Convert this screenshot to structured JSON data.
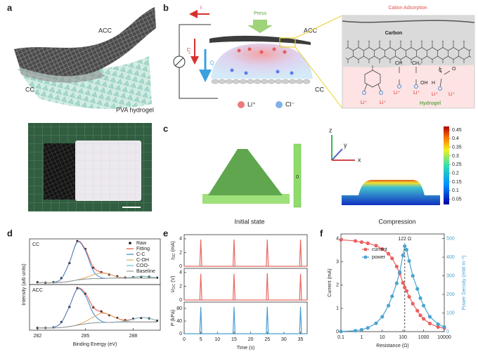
{
  "figure": {
    "panel_labels": [
      "a",
      "b",
      "c",
      "d",
      "e",
      "f"
    ],
    "a": {
      "labels": [
        "ACC",
        "CC",
        "PVA hydrogel"
      ]
    },
    "b": {
      "current": "I",
      "press": "Press",
      "acc": "ACC",
      "li": "Li⁺",
      "cl": "Cl⁻",
      "cc": "CC",
      "legend": [
        "Li⁺",
        "Cl⁻"
      ]
    },
    "adsorption": {
      "title": "Cation Adsorption",
      "carbon": "Carbon",
      "hydrogel": "Hydrogel",
      "groups": [
        "Li⁺",
        "Li⁺",
        "CH",
        "Li⁺",
        "CH₂",
        "OH",
        "Li⁺",
        "H",
        "C",
        "O",
        "Li⁺",
        "Li⁺"
      ]
    },
    "c": {
      "captions": [
        "Initial state",
        "Compression"
      ],
      "axes": [
        "z",
        "y",
        "x"
      ],
      "scale_zero": "0",
      "colorbar": {
        "lim": [
          0.02,
          0.47
        ],
        "ticks": [
          0.45,
          0.4,
          0.35,
          0.3,
          0.25,
          0.2,
          0.15,
          0.1,
          0.05
        ]
      }
    }
  },
  "chart_data": [
    {
      "type": "line",
      "title": "CC",
      "smooth": true,
      "legend": "upper right",
      "x": [
        282,
        282.5,
        283,
        283.5,
        284,
        284.5,
        285,
        285.5,
        286,
        286.5,
        287,
        287.5,
        288,
        288.5,
        289,
        289.5
      ],
      "xlim": [
        281.5,
        289.7
      ],
      "ylim": [
        0,
        1.0
      ],
      "series": [
        {
          "name": "Raw",
          "color": "#111111",
          "marker": "dot",
          "values": [
            0.05,
            0.04,
            0.05,
            0.14,
            0.47,
            0.95,
            0.78,
            0.37,
            0.27,
            0.22,
            0.18,
            0.15,
            0.16,
            0.17,
            0.17,
            0.15
          ]
        },
        {
          "name": "Fitting",
          "color": "#e8553f",
          "values": [
            0.04,
            0.04,
            0.045,
            0.13,
            0.48,
            0.94,
            0.77,
            0.38,
            0.27,
            0.23,
            0.17,
            0.15,
            0.16,
            0.18,
            0.17,
            0.15
          ]
        },
        {
          "name": "C-C",
          "color": "#3f86cc",
          "values": [
            0.04,
            0.04,
            0.045,
            0.13,
            0.48,
            0.93,
            0.74,
            0.3,
            0.15,
            0.14,
            0.14,
            0.14,
            0.14,
            0.14,
            0.14,
            0.14
          ]
        },
        {
          "name": "C-OH",
          "color": "#e3a86a",
          "values": [
            0.04,
            0.04,
            0.04,
            0.05,
            0.07,
            0.105,
            0.15,
            0.215,
            0.25,
            0.225,
            0.17,
            0.145,
            0.14,
            0.14,
            0.14,
            0.14
          ]
        },
        {
          "name": "COO-",
          "color": "#6cc3d6",
          "values": [
            0.04,
            0.04,
            0.04,
            0.05,
            0.07,
            0.1,
            0.12,
            0.13,
            0.13,
            0.14,
            0.14,
            0.145,
            0.16,
            0.18,
            0.17,
            0.15
          ]
        },
        {
          "name": "Baseline",
          "color": "#9a9a9a",
          "values": [
            0.04,
            0.04,
            0.04,
            0.05,
            0.07,
            0.1,
            0.12,
            0.13,
            0.13,
            0.14,
            0.14,
            0.14,
            0.14,
            0.14,
            0.14,
            0.14
          ]
        }
      ]
    },
    {
      "type": "line",
      "title": "ACC",
      "smooth": true,
      "x": [
        282,
        282.5,
        283,
        283.5,
        284,
        284.5,
        285,
        285.5,
        286,
        286.5,
        287,
        287.5,
        288,
        288.5,
        289,
        289.5
      ],
      "xlim": [
        281.5,
        289.7
      ],
      "ylim": [
        0,
        1.0
      ],
      "xticks": [
        282,
        285,
        288
      ],
      "xlabel": "Binding Energy (eV)",
      "ylabel": "Intensity (arb units)",
      "series": [
        {
          "color": "#111111",
          "marker": "dot",
          "values": [
            0.05,
            0.05,
            0.06,
            0.18,
            0.51,
            0.92,
            0.8,
            0.5,
            0.41,
            0.33,
            0.27,
            0.22,
            0.25,
            0.27,
            0.26,
            0.21
          ]
        },
        {
          "color": "#e8553f",
          "values": [
            0.05,
            0.05,
            0.06,
            0.17,
            0.52,
            0.91,
            0.81,
            0.5,
            0.4,
            0.34,
            0.26,
            0.22,
            0.245,
            0.28,
            0.26,
            0.21
          ]
        },
        {
          "color": "#3f86cc",
          "values": [
            0.05,
            0.05,
            0.06,
            0.17,
            0.52,
            0.9,
            0.76,
            0.37,
            0.2,
            0.17,
            0.18,
            0.18,
            0.18,
            0.18,
            0.18,
            0.18
          ]
        },
        {
          "color": "#e3a86a",
          "values": [
            0.05,
            0.05,
            0.05,
            0.06,
            0.08,
            0.12,
            0.19,
            0.29,
            0.37,
            0.34,
            0.26,
            0.2,
            0.185,
            0.18,
            0.18,
            0.18
          ]
        },
        {
          "color": "#6cc3d6",
          "values": [
            0.05,
            0.05,
            0.05,
            0.06,
            0.08,
            0.11,
            0.14,
            0.16,
            0.17,
            0.17,
            0.18,
            0.2,
            0.24,
            0.28,
            0.26,
            0.21
          ]
        },
        {
          "color": "#9a9a9a",
          "values": [
            0.05,
            0.05,
            0.05,
            0.06,
            0.08,
            0.11,
            0.14,
            0.16,
            0.17,
            0.17,
            0.18,
            0.18,
            0.18,
            0.18,
            0.18,
            0.18
          ]
        }
      ]
    },
    {
      "type": "line",
      "color": "#e8685f",
      "ylabel": {
        "symbol": "I",
        "sub": "SC",
        "unit": "(mA)"
      },
      "x": [
        0,
        4.7,
        5,
        5.3,
        14.7,
        15,
        15.3,
        24.7,
        25,
        25.3,
        34.7,
        35,
        35.3,
        37
      ],
      "values": [
        0,
        0,
        3.9,
        0,
        0,
        3.9,
        0,
        0,
        3.9,
        0,
        0,
        3.9,
        0,
        0
      ],
      "xlim": [
        0,
        37
      ],
      "ylim": [
        0,
        4.6
      ],
      "yticks": [
        0,
        2,
        4
      ]
    },
    {
      "type": "line",
      "color": "#e8685f",
      "ylabel": {
        "symbol": "V",
        "sub": "OC",
        "unit": "(V)"
      },
      "x": [
        0,
        4.7,
        5,
        5.3,
        14.7,
        15,
        15.3,
        24.7,
        25,
        25.3,
        34.7,
        35,
        35.3,
        37
      ],
      "values": [
        0,
        0,
        3.8,
        0,
        0,
        3.8,
        0,
        0,
        3.9,
        0,
        0,
        3.8,
        0,
        0
      ],
      "xlim": [
        0,
        37
      ],
      "ylim": [
        0,
        4.6
      ],
      "yticks": [
        0,
        2,
        4
      ]
    },
    {
      "type": "line",
      "color": "#4a9fd0",
      "ylabel": {
        "symbol": "P",
        "unit": "(kPa)"
      },
      "x": [
        0,
        4.7,
        5,
        5.3,
        14.7,
        15,
        15.3,
        24.7,
        25,
        25.3,
        34.7,
        35,
        35.3,
        37
      ],
      "values": [
        0,
        0,
        85,
        0,
        0,
        85,
        0,
        0,
        85,
        0,
        0,
        85,
        0,
        0
      ],
      "xlim": [
        0,
        37
      ],
      "ylim": [
        0,
        100
      ],
      "yticks": [
        0,
        40,
        80
      ],
      "xticks": [
        0,
        5,
        10,
        15,
        20,
        25,
        30,
        35
      ],
      "xlabel": "Time (s)"
    },
    {
      "type": "line",
      "xlog": true,
      "markers": true,
      "legend": "upper left",
      "x": [
        0.1,
        0.5,
        1,
        2,
        5,
        10,
        20,
        30,
        50,
        70,
        100,
        122,
        150,
        200,
        300,
        500,
        700,
        1000,
        2000,
        5000,
        10000
      ],
      "xlim": [
        0.1,
        10000
      ],
      "xticks": [
        0.1,
        1,
        10,
        100,
        1000,
        10000
      ],
      "ylim": [
        0,
        4.2
      ],
      "yticks": [
        0,
        1,
        2,
        3,
        4
      ],
      "y2lim": [
        0,
        525
      ],
      "y2ticks": [
        0,
        100,
        200,
        300,
        400,
        500
      ],
      "xlabel": "Resistance (Ω)",
      "ylabel": "Current (mA)",
      "y2label": "Power Density (mW m⁻²)",
      "annotation": {
        "text": "122 Ω",
        "x": 122
      },
      "series": [
        {
          "name": "current",
          "color": "#ec5f5f",
          "values": [
            3.95,
            3.9,
            3.85,
            3.8,
            3.7,
            3.55,
            3.35,
            3.15,
            2.8,
            2.5,
            2.1,
            1.9,
            1.75,
            1.5,
            1.2,
            0.9,
            0.7,
            0.55,
            0.35,
            0.2,
            0.15
          ]
        },
        {
          "name": "power",
          "color": "#4aa3d0",
          "axis": "y2",
          "values": [
            1,
            5,
            10,
            20,
            45,
            80,
            140,
            190,
            260,
            320,
            410,
            460,
            440,
            380,
            300,
            230,
            180,
            140,
            80,
            40,
            25
          ]
        }
      ]
    }
  ]
}
